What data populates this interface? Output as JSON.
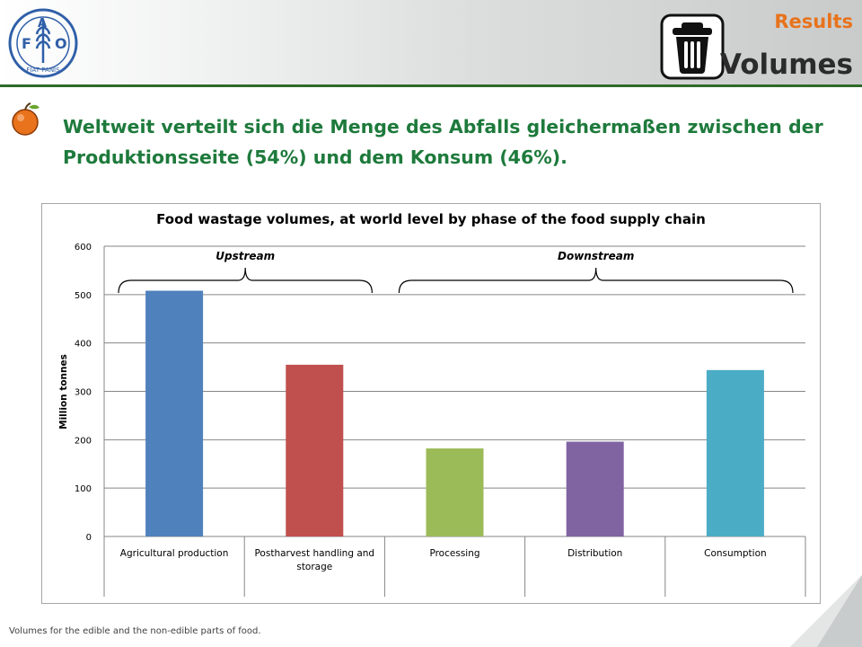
{
  "header": {
    "logo_text": [
      "F",
      "A",
      "O",
      "FIAT PANIS"
    ],
    "section": "Results",
    "title": "Volumes",
    "icon": "trash-bin-icon"
  },
  "bullet": {
    "icon": "orange-fruit-icon",
    "color": "#e8731c"
  },
  "headline": "Weltweit verteilt sich die Menge des Abfalls gleichermaßen zwischen der Produktionsseite (54%) und dem Konsum (46%).",
  "chart_data": {
    "type": "bar",
    "title": "Food wastage volumes, at world level by phase of the food supply chain",
    "ylabel": "Million tonnes",
    "xlabel": "",
    "categories": [
      "Agricultural production",
      "Postharvest handling and storage",
      "Processing",
      "Distribution",
      "Consumption"
    ],
    "values": [
      508,
      355,
      182,
      196,
      344
    ],
    "colors": [
      "#4f81bd",
      "#c0504d",
      "#9bbb59",
      "#8064a2",
      "#4bacc6"
    ],
    "ylim": [
      0,
      600
    ],
    "yticks": [
      0,
      100,
      200,
      300,
      400,
      500,
      600
    ],
    "grid": true,
    "groups": [
      {
        "label": "Upstream",
        "from": 0,
        "to": 1
      },
      {
        "label": "Downstream",
        "from": 2,
        "to": 4
      }
    ]
  },
  "footnote": "Volumes for the edible and the non-edible parts of food.",
  "colors": {
    "accent": "#e8731c",
    "green": "#1e7a3c",
    "header_line": "#2e6b2a"
  }
}
